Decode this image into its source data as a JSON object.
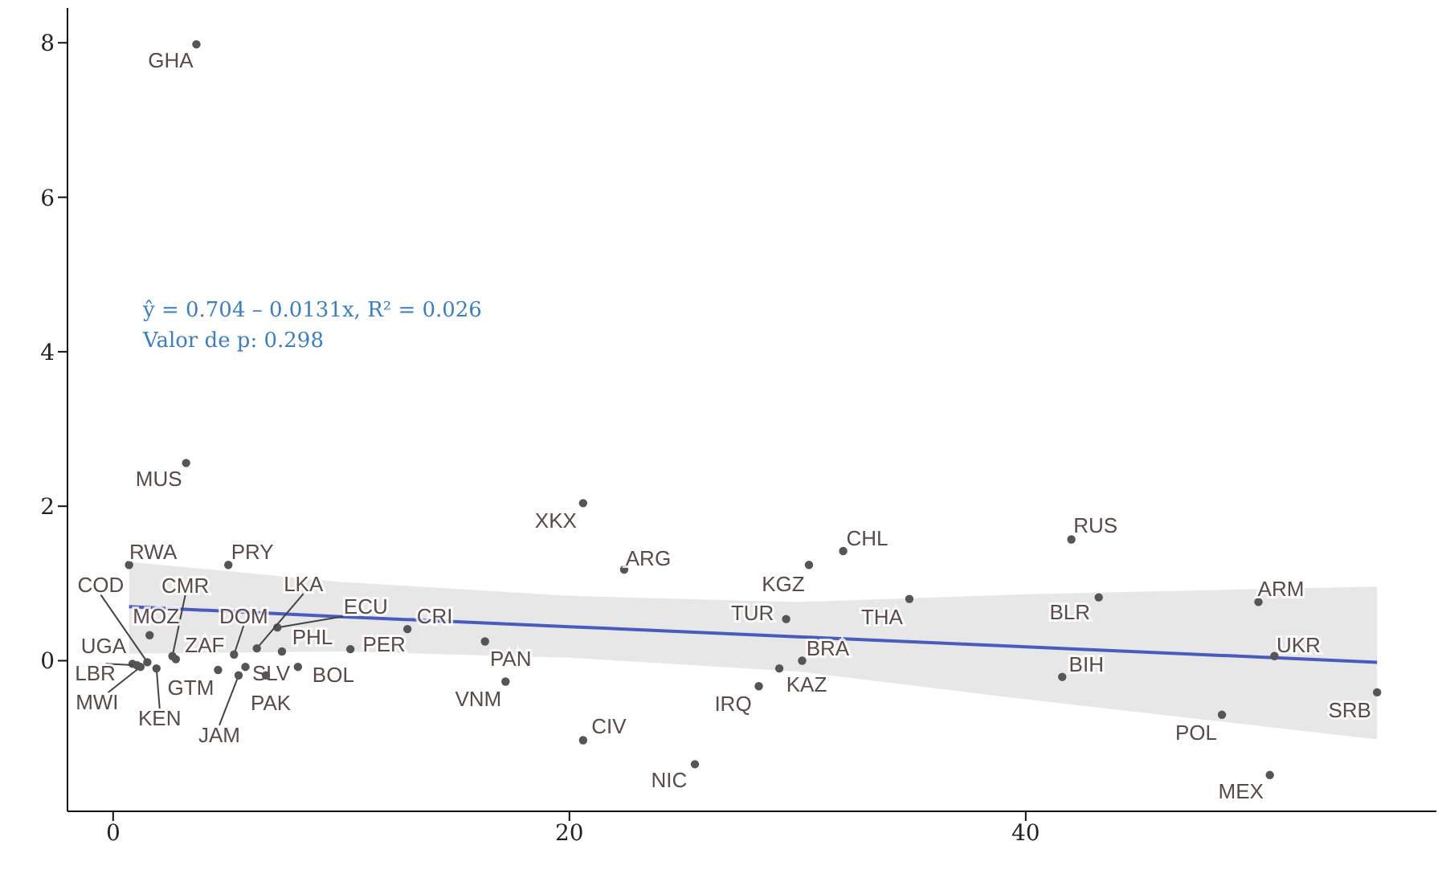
{
  "chart_data": {
    "type": "scatter",
    "annotations": [
      "ŷ = 0.704 – 0.0131x, R² = 0.026",
      "Valor de p: 0.298"
    ],
    "xlim": [
      -2,
      58
    ],
    "xticks": [
      0,
      20,
      40
    ],
    "ylim": [
      -1.95,
      8.45
    ],
    "yticks": [
      0,
      2,
      4,
      6,
      8
    ],
    "marker": "circle",
    "series": [
      {
        "color": "#555555",
        "x": [
          3.65,
          3.2,
          20.6,
          22.4,
          32.0,
          30.5,
          42.0,
          50.2,
          43.2,
          34.9,
          29.5,
          30.2,
          29.2,
          28.3,
          50.9,
          41.6,
          55.4,
          48.6,
          50.7,
          25.5,
          20.6,
          17.2,
          16.3,
          12.9,
          10.4,
          7.4,
          8.1,
          7.2,
          6.3,
          5.3,
          5.8,
          5.5,
          6.7,
          4.6,
          2.75,
          2.6,
          1.6,
          1.5,
          0.7,
          5.05,
          0.85,
          1.05,
          1.2,
          1.9
        ],
        "values": [
          7.98,
          2.56,
          2.04,
          1.18,
          1.42,
          1.24,
          1.57,
          0.76,
          0.82,
          0.8,
          0.54,
          0.0,
          -0.1,
          -0.33,
          0.06,
          -0.21,
          -0.41,
          -0.7,
          -1.48,
          -1.34,
          -1.03,
          -0.27,
          0.25,
          0.41,
          0.15,
          0.12,
          -0.08,
          0.43,
          0.16,
          0.08,
          -0.08,
          -0.19,
          -0.19,
          -0.12,
          0.02,
          0.06,
          0.33,
          -0.02,
          1.24,
          1.24,
          -0.04,
          -0.06,
          -0.08,
          -0.1
        ],
        "value_labels": [
          "GHA",
          "MUS",
          "XKX",
          "ARG",
          "CHL",
          "KGZ",
          "RUS",
          "ARM",
          "BLR",
          "THA",
          "TUR",
          "BRA",
          "KAZ",
          "IRQ",
          "UKR",
          "BIH",
          "SRB",
          "POL",
          "MEX",
          "NIC",
          "CIV",
          "VNM",
          "PAN",
          "CRI",
          "PER",
          "PHL",
          "BOL",
          "ECU",
          "LKA",
          "DOM",
          "SLV",
          "JAM",
          "PAK",
          "GTM",
          "ZAF",
          "CMR",
          "MOZ",
          "COD",
          "RWA",
          "PRY",
          "UGA",
          "LBR",
          "MWI",
          "KEN"
        ]
      },
      {
        "type": "line",
        "marker": "none",
        "color": "#4a5bbf",
        "x": [
          0.7,
          10,
          20,
          30,
          40,
          55.4
        ],
        "values": [
          0.7,
          0.57,
          0.44,
          0.31,
          0.18,
          -0.02
        ],
        "lower": [
          0.09,
          0.12,
          0.04,
          -0.14,
          -0.5,
          -1.02
        ],
        "upper": [
          1.28,
          1.02,
          0.84,
          0.76,
          0.86,
          0.96
        ]
      }
    ]
  }
}
